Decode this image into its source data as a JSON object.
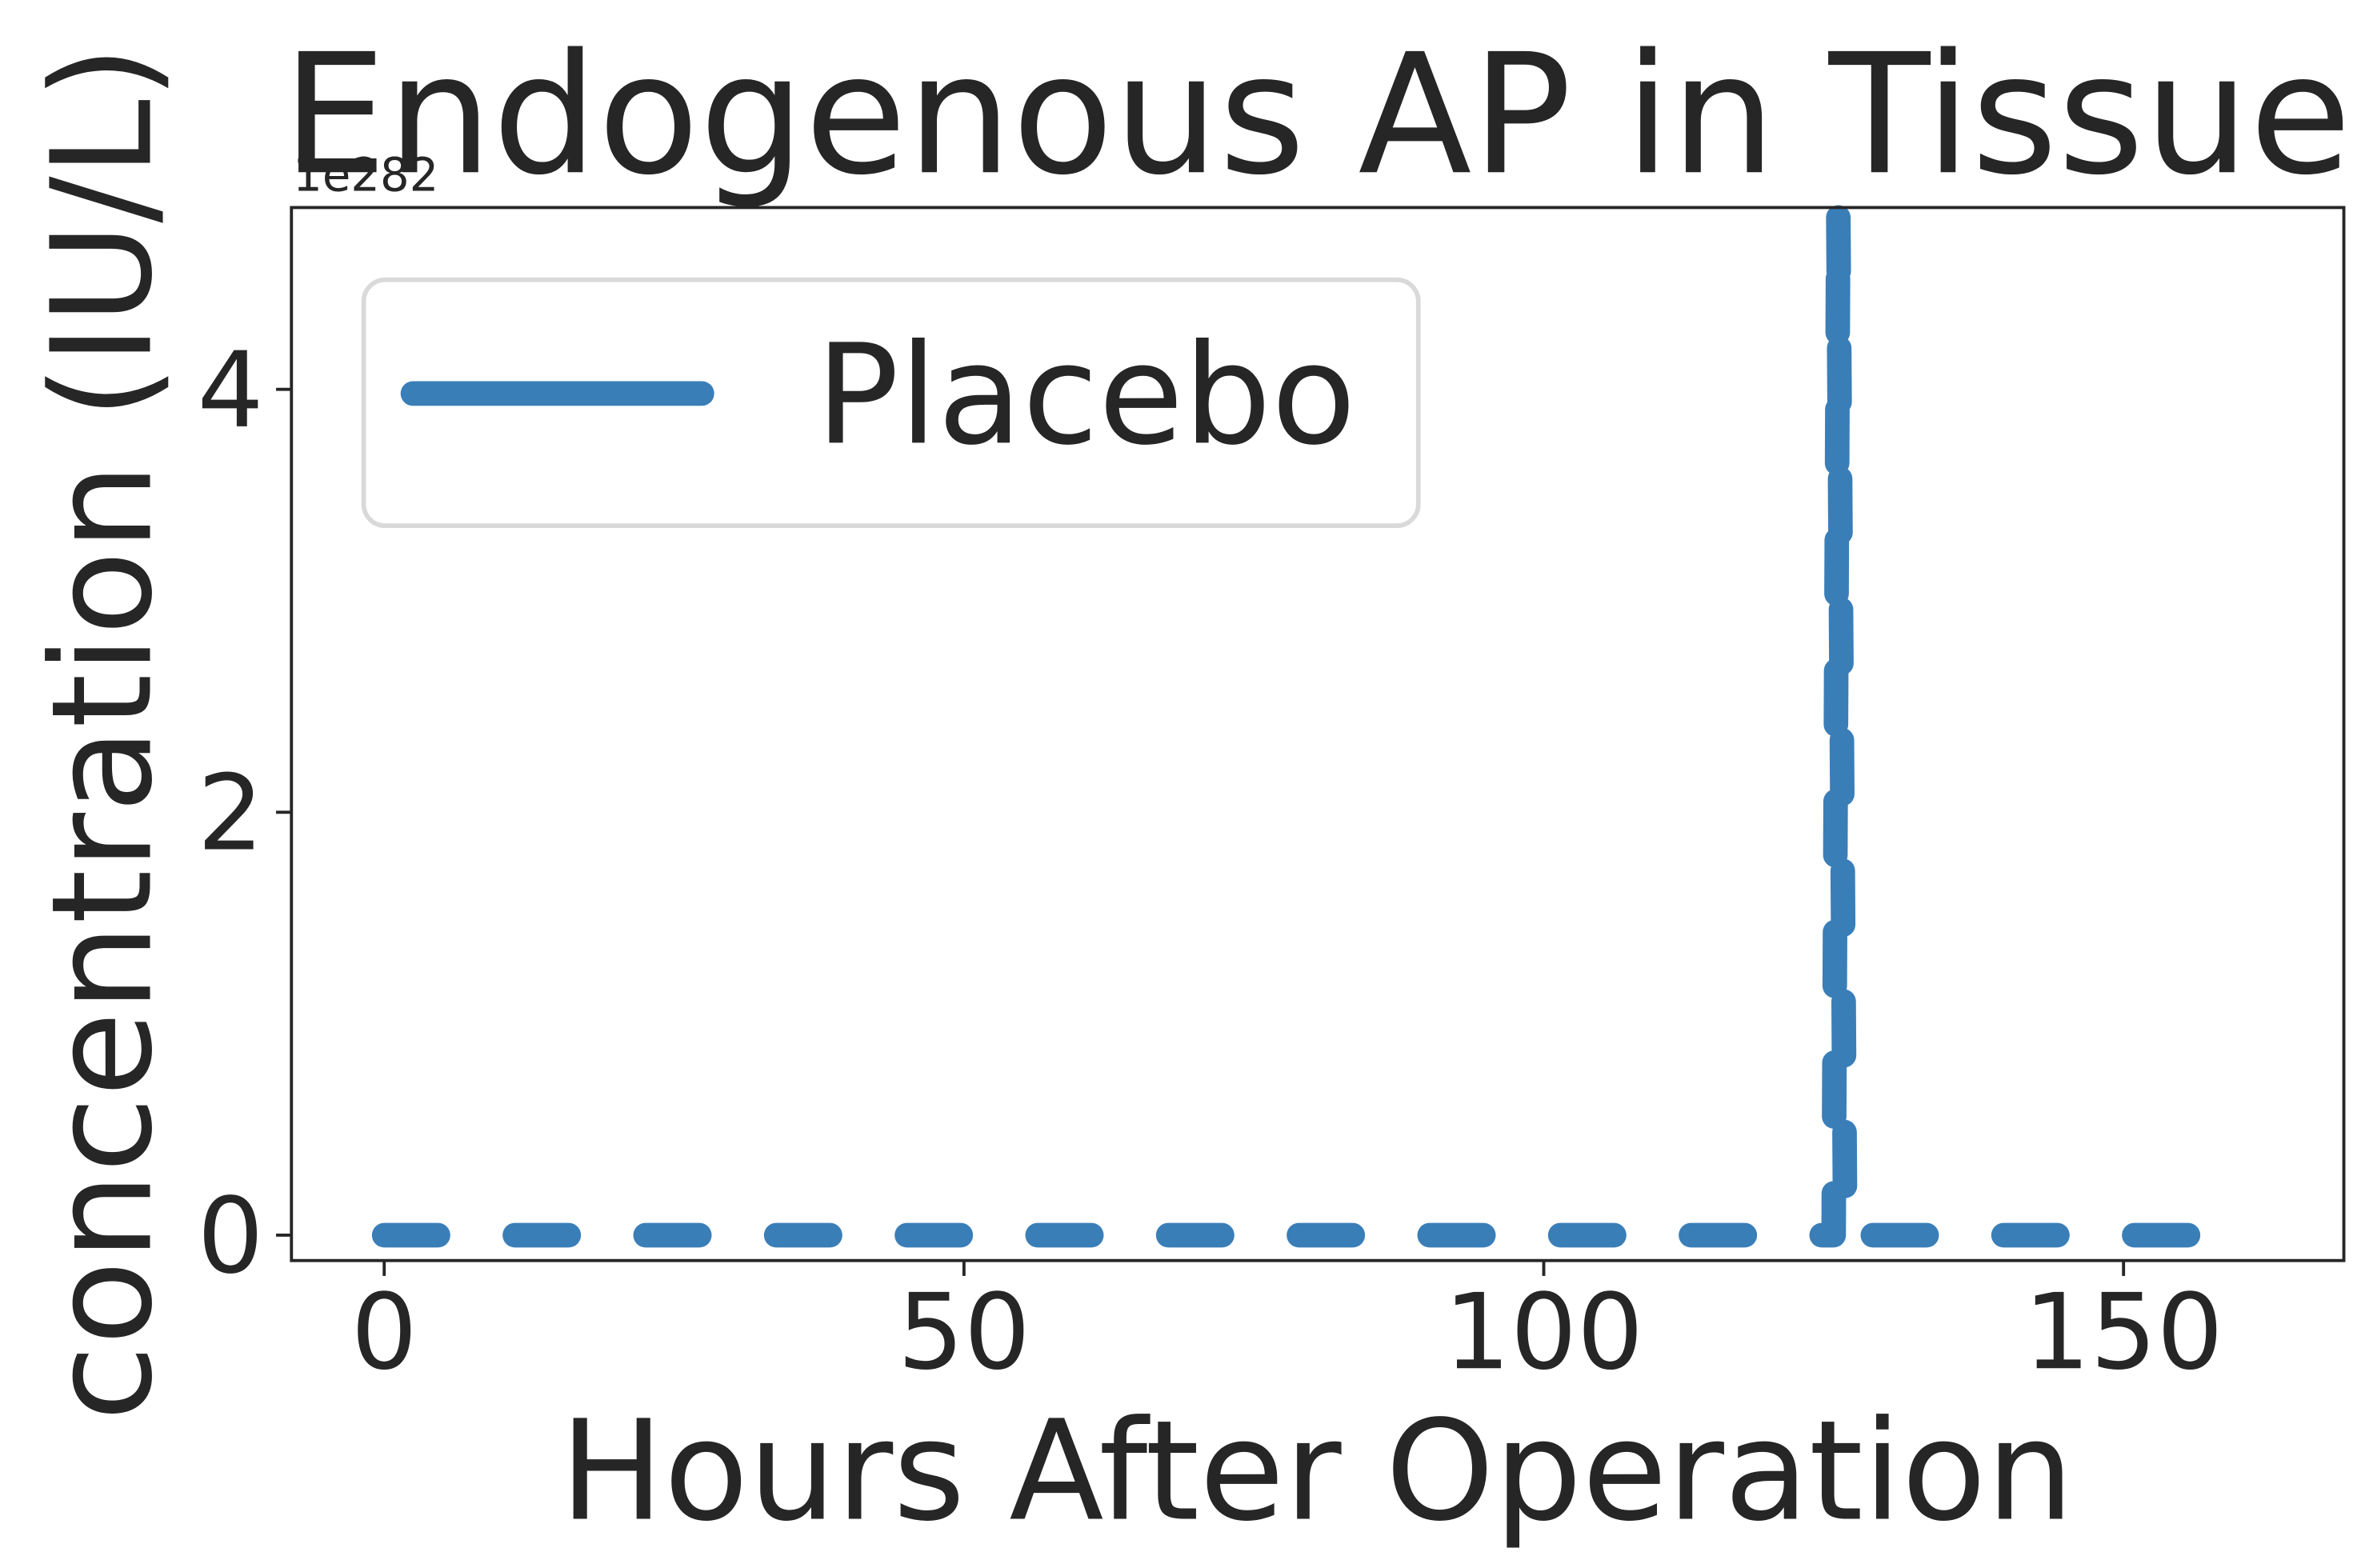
{
  "chart_data": {
    "type": "line",
    "title": "Endogenous AP in Tissue",
    "xlabel": "Hours After Operation",
    "ylabel": "concentration (IU/L)",
    "y_offset_label": "1e282",
    "xlim": [
      -8,
      169
    ],
    "ylim": [
      -0.12,
      4.86
    ],
    "xticks": [
      0,
      50,
      100,
      150
    ],
    "yticks": [
      0,
      2,
      4
    ],
    "legend": {
      "position": "top-left",
      "frame": true
    },
    "grid": false,
    "series": [
      {
        "name": "Placebo",
        "color": "#3a7eb8",
        "linestyle": "dashed",
        "x": [
          0,
          5,
          10,
          15,
          20,
          25,
          30,
          35,
          40,
          45,
          50,
          55,
          60,
          65,
          70,
          75,
          80,
          85,
          90,
          95,
          100,
          105,
          110,
          115,
          120,
          124,
          125,
          125.4,
          126,
          130,
          135,
          140,
          145,
          150,
          155,
          160
        ],
        "y": [
          0,
          0,
          0,
          0,
          0,
          0,
          0,
          0,
          0,
          0,
          0,
          0,
          0,
          0,
          0,
          0,
          0,
          0,
          0,
          0,
          0,
          0,
          0,
          0,
          0,
          0,
          0,
          4.85,
          0,
          0,
          0,
          0,
          0,
          0,
          0,
          0
        ]
      }
    ]
  }
}
